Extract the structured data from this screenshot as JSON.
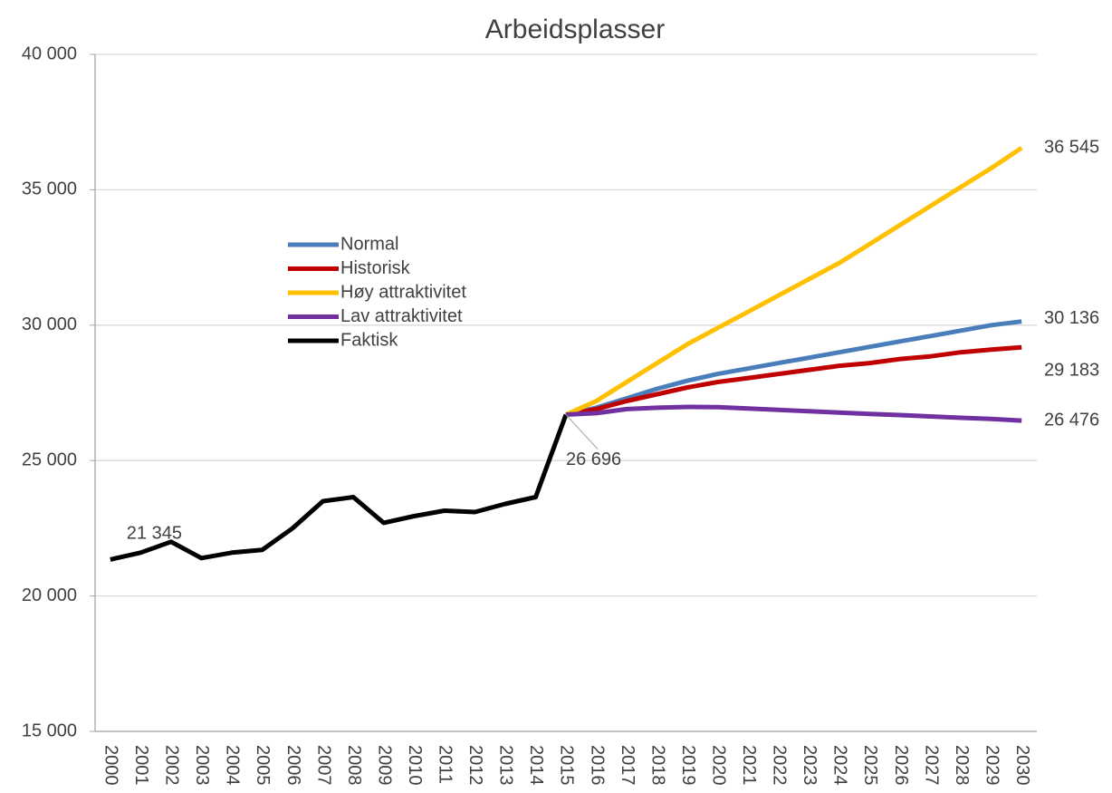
{
  "chart_data": {
    "type": "line",
    "title": "Arbeidsplasser",
    "categories": [
      "2000",
      "2001",
      "2002",
      "2003",
      "2004",
      "2005",
      "2006",
      "2007",
      "2008",
      "2009",
      "2010",
      "2011",
      "2012",
      "2013",
      "2014",
      "2015",
      "2016",
      "2017",
      "2018",
      "2019",
      "2020",
      "2021",
      "2022",
      "2023",
      "2024",
      "2025",
      "2026",
      "2027",
      "2028",
      "2029",
      "2030"
    ],
    "ylim": [
      15000,
      40000
    ],
    "yticks": [
      {
        "value": 15000,
        "label": "15 000"
      },
      {
        "value": 20000,
        "label": "20 000"
      },
      {
        "value": 25000,
        "label": "25 000"
      },
      {
        "value": 30000,
        "label": "30 000"
      },
      {
        "value": 35000,
        "label": "35 000"
      },
      {
        "value": 40000,
        "label": "40 000"
      }
    ],
    "grid": true,
    "legend": "upper left",
    "series": [
      {
        "name": "Normal",
        "color": "#4a7ebb",
        "values": [
          null,
          null,
          null,
          null,
          null,
          null,
          null,
          null,
          null,
          null,
          null,
          null,
          null,
          null,
          null,
          26696,
          26950,
          27300,
          27650,
          27950,
          28200,
          28400,
          28600,
          28800,
          29000,
          29200,
          29400,
          29600,
          29800,
          30000,
          30136
        ],
        "value_labels": [
          null,
          null,
          null,
          null,
          null,
          null,
          null,
          null,
          null,
          null,
          null,
          null,
          null,
          null,
          null,
          null,
          null,
          null,
          null,
          null,
          null,
          null,
          null,
          null,
          null,
          null,
          null,
          null,
          null,
          null,
          "30 136"
        ]
      },
      {
        "name": "Historisk",
        "color": "#c00000",
        "values": [
          null,
          null,
          null,
          null,
          null,
          null,
          null,
          null,
          null,
          null,
          null,
          null,
          null,
          null,
          null,
          26696,
          26900,
          27200,
          27450,
          27700,
          27900,
          28050,
          28200,
          28350,
          28500,
          28600,
          28750,
          28850,
          29000,
          29100,
          29183
        ],
        "value_labels": [
          null,
          null,
          null,
          null,
          null,
          null,
          null,
          null,
          null,
          null,
          null,
          null,
          null,
          null,
          null,
          null,
          null,
          null,
          null,
          null,
          null,
          null,
          null,
          null,
          null,
          null,
          null,
          null,
          null,
          null,
          "29 183"
        ]
      },
      {
        "name": "Høy attraktivitet",
        "color": "#ffc000",
        "values": [
          null,
          null,
          null,
          null,
          null,
          null,
          null,
          null,
          null,
          null,
          null,
          null,
          null,
          null,
          null,
          26696,
          27200,
          27900,
          28600,
          29300,
          29900,
          30500,
          31100,
          31700,
          32300,
          33000,
          33700,
          34400,
          35100,
          35800,
          36545
        ],
        "value_labels": [
          null,
          null,
          null,
          null,
          null,
          null,
          null,
          null,
          null,
          null,
          null,
          null,
          null,
          null,
          null,
          null,
          null,
          null,
          null,
          null,
          null,
          null,
          null,
          null,
          null,
          null,
          null,
          null,
          null,
          null,
          "36 545"
        ]
      },
      {
        "name": "Lav attraktivitet",
        "color": "#7030a0",
        "values": [
          null,
          null,
          null,
          null,
          null,
          null,
          null,
          null,
          null,
          null,
          null,
          null,
          null,
          null,
          null,
          26696,
          26750,
          26900,
          26950,
          26980,
          26970,
          26920,
          26870,
          26820,
          26770,
          26720,
          26680,
          26630,
          26580,
          26540,
          26476
        ],
        "value_labels": [
          null,
          null,
          null,
          null,
          null,
          null,
          null,
          null,
          null,
          null,
          null,
          null,
          null,
          null,
          null,
          null,
          null,
          null,
          null,
          null,
          null,
          null,
          null,
          null,
          null,
          null,
          null,
          null,
          null,
          null,
          "26 476"
        ]
      },
      {
        "name": "Faktisk",
        "color": "#000000",
        "values": [
          21345,
          21600,
          22000,
          21400,
          21600,
          21700,
          22500,
          23500,
          23650,
          22700,
          22950,
          23150,
          23100,
          23400,
          23650,
          26696,
          null,
          null,
          null,
          null,
          null,
          null,
          null,
          null,
          null,
          null,
          null,
          null,
          null,
          null,
          null
        ],
        "value_labels": [
          "21 345",
          null,
          null,
          null,
          null,
          null,
          null,
          null,
          null,
          null,
          null,
          null,
          null,
          null,
          null,
          "26 696",
          null,
          null,
          null,
          null,
          null,
          null,
          null,
          null,
          null,
          null,
          null,
          null,
          null,
          null,
          null
        ]
      }
    ]
  }
}
